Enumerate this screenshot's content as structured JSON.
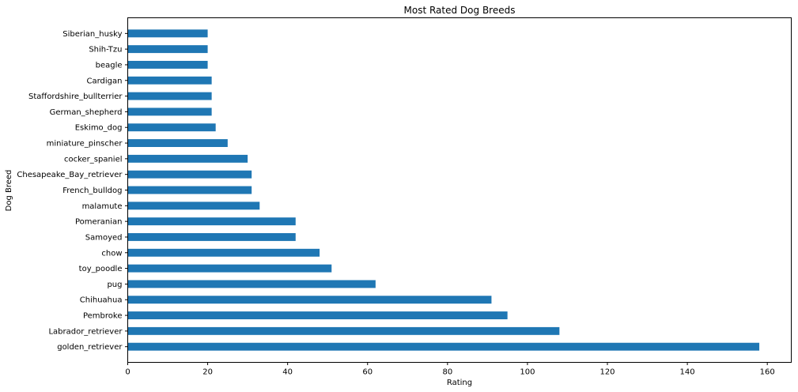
{
  "chart_data": {
    "type": "bar",
    "orientation": "horizontal",
    "title": "Most Rated Dog Breeds",
    "xlabel": "Rating",
    "ylabel": "Dog Breed",
    "xlim": [
      0,
      166
    ],
    "xticks": [
      0,
      20,
      40,
      60,
      80,
      100,
      120,
      140,
      160
    ],
    "grid": false,
    "legend": "none",
    "bar_color": "#1f77b4",
    "categories": [
      "golden_retriever",
      "Labrador_retriever",
      "Pembroke",
      "Chihuahua",
      "pug",
      "toy_poodle",
      "chow",
      "Samoyed",
      "Pomeranian",
      "malamute",
      "French_bulldog",
      "Chesapeake_Bay_retriever",
      "cocker_spaniel",
      "miniature_pinscher",
      "Eskimo_dog",
      "German_shepherd",
      "Staffordshire_bullterrier",
      "Cardigan",
      "beagle",
      "Shih-Tzu",
      "Siberian_husky"
    ],
    "values": [
      158,
      108,
      95,
      91,
      62,
      51,
      48,
      42,
      42,
      33,
      31,
      31,
      30,
      25,
      22,
      21,
      21,
      21,
      20,
      20,
      20
    ]
  }
}
